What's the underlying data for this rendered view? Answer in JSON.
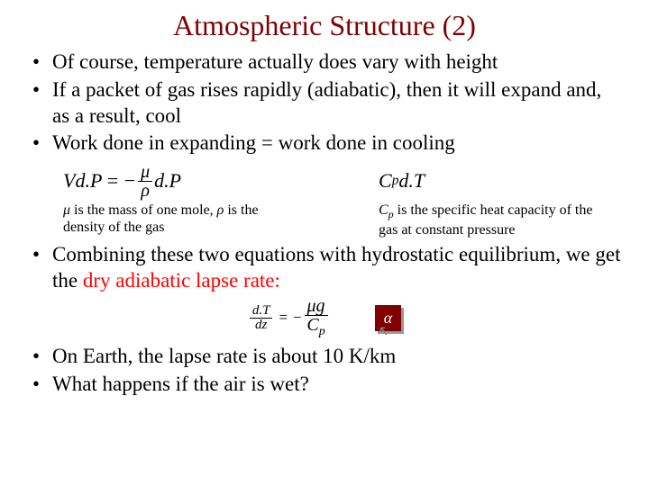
{
  "title": "Atmospheric Structure (2)",
  "title_color": "#800000",
  "bullets": {
    "b1": "Of course, temperature actually does vary with height",
    "b2": "If a packet of gas rises rapidly (adiabatic), then it will expand and, as a result, cool",
    "b3": "Work done in expanding = work done in cooling",
    "b4_a": "Combining these two equations with hydrostatic equilibrium, we get the ",
    "b4_b": "dry adiabatic lapse rate:",
    "b5": "On Earth, the lapse rate is about 10 K/km",
    "b6": "What happens if the air is wet?"
  },
  "eq1": {
    "lhs": "Vd.P",
    "eq": "=",
    "minus": "−",
    "num": "μ",
    "den": "ρ",
    "rhs": "d.P"
  },
  "eq2": {
    "c": "C",
    "sub": "p",
    "rhs": "d.T"
  },
  "cap1": {
    "pre": "μ",
    "mid": " is the mass of one mole, ",
    "rho": "ρ",
    "post": " is the density of the gas"
  },
  "cap2": {
    "c": "C",
    "sub": "p",
    "post": " is the specific heat capacity of the gas at constant pressure"
  },
  "lapse": {
    "ltop": "d.T",
    "lbot": "dz",
    "eq": "=",
    "minus": "−",
    "rtop": "μg",
    "rbot_c": "C",
    "rbot_sub": "p"
  },
  "alpha": "α",
  "colors": {
    "title": "#800000",
    "box_bg": "#800000",
    "box_fg": "#ffffff",
    "red": "#ff0000"
  },
  "fontsizes": {
    "title": 32,
    "body": 23,
    "caption": 16,
    "eq": 22
  }
}
